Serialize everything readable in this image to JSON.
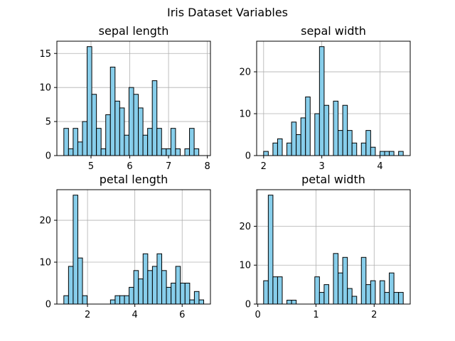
{
  "figure": {
    "suptitle": "Iris Dataset Variables"
  },
  "style": {
    "bar_color": "#87ceeb",
    "edge_color": "#000000",
    "grid": true
  },
  "chart_data": [
    {
      "type": "bar",
      "title": "sepal length",
      "xlim": [
        4.12,
        8.08
      ],
      "ylim": [
        0,
        16.8
      ],
      "xticks": [
        5,
        6,
        7,
        8
      ],
      "yticks": [
        0,
        5,
        10,
        15
      ],
      "bin_start": 4.3,
      "bin_width": 0.12,
      "values": [
        4,
        1,
        4,
        2,
        5,
        16,
        9,
        4,
        1,
        6,
        13,
        8,
        7,
        3,
        10,
        9,
        7,
        3,
        4,
        11,
        4,
        1,
        1,
        4,
        1,
        0,
        1,
        4,
        1,
        0
      ]
    },
    {
      "type": "bar",
      "title": "sepal width",
      "xlim": [
        1.88,
        4.52
      ],
      "ylim": [
        0,
        27.3
      ],
      "xticks": [
        2,
        3,
        4
      ],
      "yticks": [
        0,
        10,
        20
      ],
      "bin_start": 2.0,
      "bin_width": 0.08,
      "values": [
        1,
        0,
        3,
        4,
        0,
        3,
        8,
        5,
        9,
        14,
        0,
        10,
        26,
        12,
        0,
        13,
        6,
        12,
        6,
        3,
        0,
        3,
        6,
        2,
        0,
        1,
        1,
        1,
        0,
        1
      ]
    },
    {
      "type": "bar",
      "title": "petal length",
      "xlim": [
        0.705,
        7.195
      ],
      "ylim": [
        0,
        27.3
      ],
      "xticks": [
        2,
        4,
        6
      ],
      "yticks": [
        0,
        10,
        20
      ],
      "bin_start": 1.0,
      "bin_width": 0.197,
      "values": [
        2,
        9,
        26,
        11,
        2,
        0,
        0,
        0,
        0,
        0,
        1,
        2,
        2,
        2,
        4,
        8,
        6,
        12,
        8,
        9,
        12,
        8,
        4,
        5,
        9,
        5,
        5,
        1,
        3,
        1
      ]
    },
    {
      "type": "bar",
      "title": "petal width",
      "xlim": [
        -0.02,
        2.62
      ],
      "ylim": [
        0,
        29.4
      ],
      "xticks": [
        0,
        1,
        2
      ],
      "yticks": [
        0,
        10,
        20
      ],
      "bin_start": 0.1,
      "bin_width": 0.08,
      "values": [
        6,
        28,
        7,
        7,
        0,
        1,
        1,
        0,
        0,
        0,
        0,
        7,
        3,
        5,
        0,
        13,
        8,
        12,
        4,
        2,
        0,
        12,
        5,
        6,
        0,
        6,
        3,
        8,
        3,
        3
      ]
    }
  ]
}
